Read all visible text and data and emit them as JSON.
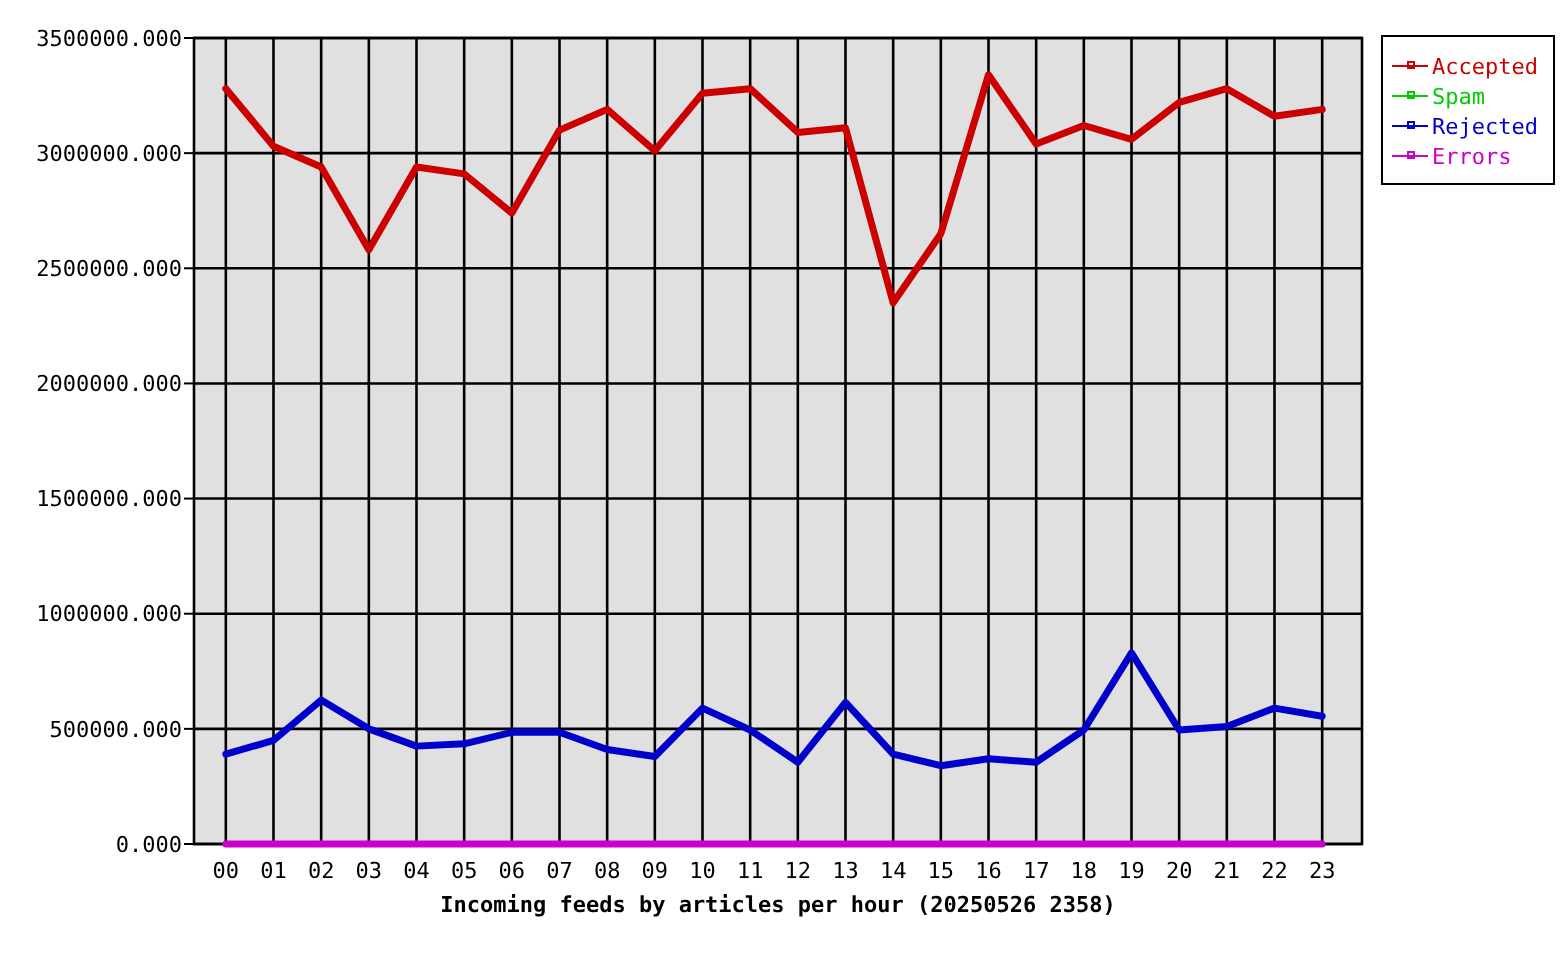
{
  "chart_data": {
    "type": "line",
    "xlabel": "Incoming feeds by articles per hour (20250526 2358)",
    "categories": [
      "00",
      "01",
      "02",
      "03",
      "04",
      "05",
      "06",
      "07",
      "08",
      "09",
      "10",
      "11",
      "12",
      "13",
      "14",
      "15",
      "16",
      "17",
      "18",
      "19",
      "20",
      "21",
      "22",
      "23"
    ],
    "series": [
      {
        "name": "Accepted",
        "color": "#cc0000",
        "values": [
          3280000,
          3030000,
          2940000,
          2580000,
          2940000,
          2910000,
          2740000,
          3100000,
          3190000,
          3010000,
          3260000,
          3280000,
          3090000,
          3110000,
          2350000,
          2650000,
          3340000,
          3040000,
          3120000,
          3060000,
          3220000,
          3280000,
          3160000,
          3190000
        ]
      },
      {
        "name": "Spam",
        "color": "#00cc00",
        "values": [
          null,
          null,
          null,
          null,
          null,
          null,
          null,
          null,
          null,
          null,
          null,
          null,
          null,
          null,
          null,
          null,
          null,
          null,
          null,
          null,
          null,
          null,
          null,
          null
        ]
      },
      {
        "name": "Rejected",
        "color": "#0000cc",
        "values": [
          390000,
          450000,
          625000,
          500000,
          425000,
          435000,
          485000,
          485000,
          410000,
          380000,
          590000,
          495000,
          355000,
          615000,
          390000,
          340000,
          370000,
          355000,
          495000,
          830000,
          495000,
          510000,
          590000,
          555000
        ]
      },
      {
        "name": "Errors",
        "color": "#cc00cc",
        "values": [
          0,
          0,
          0,
          0,
          0,
          0,
          0,
          0,
          0,
          0,
          0,
          0,
          0,
          0,
          0,
          0,
          0,
          0,
          0,
          0,
          0,
          0,
          0,
          0
        ]
      }
    ],
    "ylim": [
      0,
      3500000
    ],
    "yticks": [
      {
        "value": 0,
        "label": "0.000"
      },
      {
        "value": 500000,
        "label": "500000.000"
      },
      {
        "value": 1000000,
        "label": "1000000.000"
      },
      {
        "value": 1500000,
        "label": "1500000.000"
      },
      {
        "value": 2000000,
        "label": "2000000.000"
      },
      {
        "value": 2500000,
        "label": "2500000.000"
      },
      {
        "value": 3000000,
        "label": "3000000.000"
      },
      {
        "value": 3500000,
        "label": "3500000.000"
      }
    ],
    "grid": true,
    "legend": "top right",
    "marker": "none",
    "line_style": "solid"
  }
}
